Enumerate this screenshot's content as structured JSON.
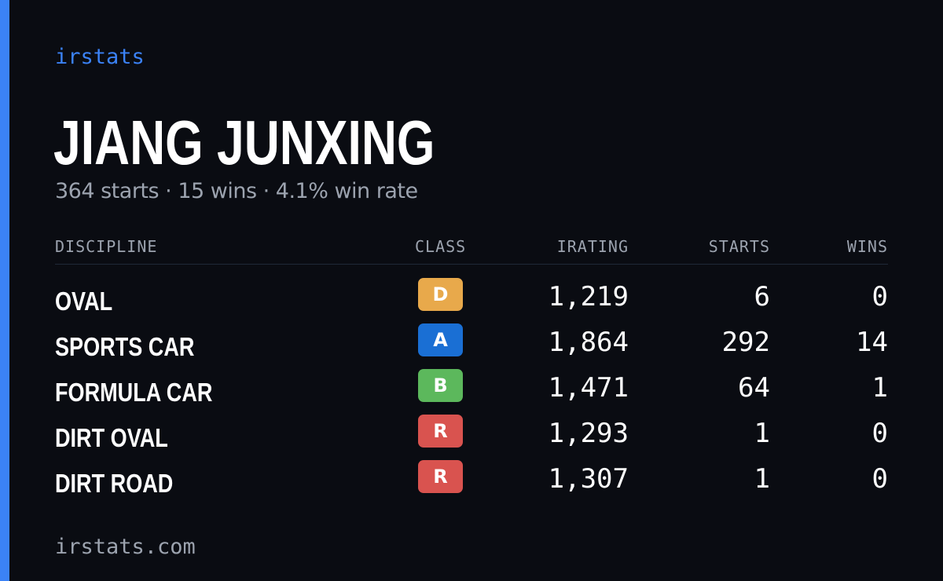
{
  "brand": "irstats",
  "player": {
    "name": "JIANG JUNXING",
    "summary": "364 starts · 15 wins · 4.1% win rate"
  },
  "table": {
    "headers": {
      "discipline": "DISCIPLINE",
      "class": "CLASS",
      "irating": "IRATING",
      "starts": "STARTS",
      "wins": "WINS"
    },
    "rows": [
      {
        "discipline": "OVAL",
        "class": "D",
        "class_color": "#e8a94b",
        "irating": "1,219",
        "starts": "6",
        "wins": "0"
      },
      {
        "discipline": "SPORTS CAR",
        "class": "A",
        "class_color": "#1a6fd4",
        "irating": "1,864",
        "starts": "292",
        "wins": "14"
      },
      {
        "discipline": "FORMULA CAR",
        "class": "B",
        "class_color": "#5cb85c",
        "irating": "1,471",
        "starts": "64",
        "wins": "1"
      },
      {
        "discipline": "DIRT OVAL",
        "class": "R",
        "class_color": "#d9534f",
        "irating": "1,293",
        "starts": "1",
        "wins": "0"
      },
      {
        "discipline": "DIRT ROAD",
        "class": "R",
        "class_color": "#d9534f",
        "irating": "1,307",
        "starts": "1",
        "wins": "0"
      }
    ]
  },
  "footer": "irstats.com",
  "colors": {
    "accent": "#3b82f6",
    "background": "#0a0c12",
    "muted": "#9ca3af"
  }
}
